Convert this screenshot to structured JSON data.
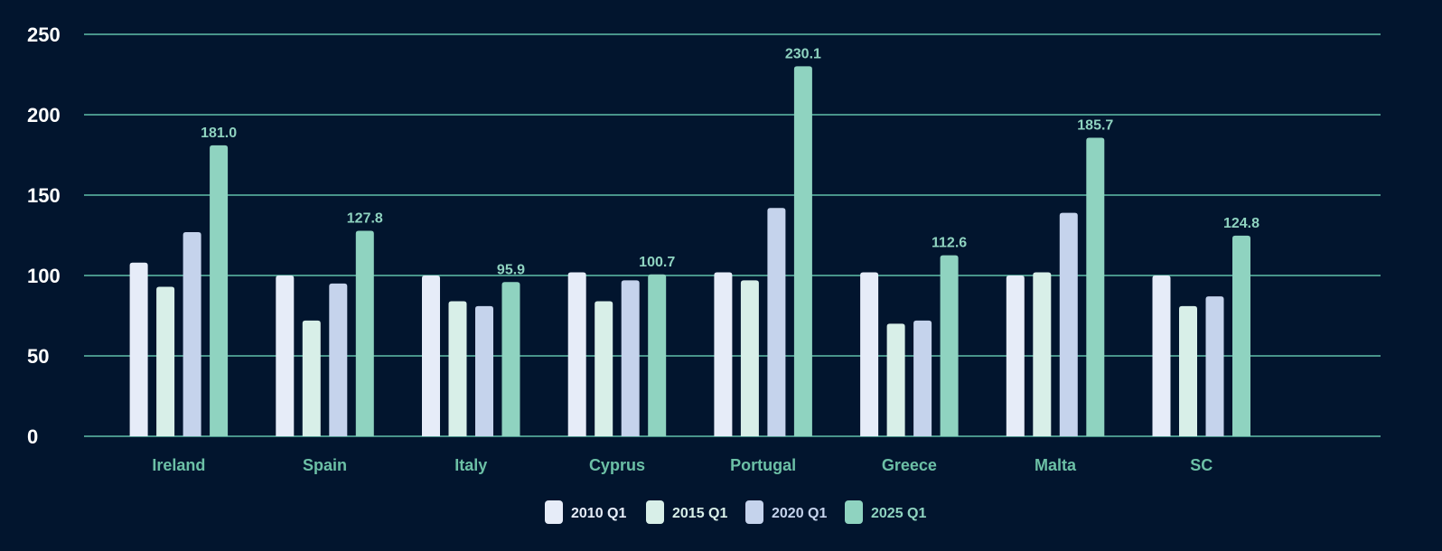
{
  "chart_data": {
    "type": "bar",
    "title": "",
    "xlabel": "",
    "ylabel": "",
    "ylim": [
      0,
      250
    ],
    "yticks": [
      0,
      50,
      100,
      150,
      200,
      250
    ],
    "grid": true,
    "legend_position": "bottom",
    "categories": [
      "Ireland",
      "Spain",
      "Italy",
      "Cyprus",
      "Portugal",
      "Greece",
      "Malta",
      "SC"
    ],
    "series": [
      {
        "name": "2010 Q1",
        "color": "#e6ecf8",
        "values": [
          108,
          100,
          100,
          102,
          102,
          102,
          100,
          100
        ]
      },
      {
        "name": "2015 Q1",
        "color": "#d8efe8",
        "values": [
          93,
          72,
          84,
          84,
          97,
          70,
          102,
          81
        ]
      },
      {
        "name": "2020 Q1",
        "color": "#c5d3ec",
        "values": [
          127,
          95,
          81,
          97,
          142,
          72,
          139,
          87
        ]
      },
      {
        "name": "2025 Q1",
        "color": "#8fd3c0",
        "values": [
          181.0,
          127.8,
          95.9,
          100.7,
          230.1,
          112.6,
          185.7,
          124.8
        ],
        "data_labels": [
          "181.0",
          "127.8",
          "95.9",
          "100.7",
          "230.1",
          "112.6",
          "185.7",
          "124.8"
        ]
      }
    ],
    "colors": {
      "background": "#02152e",
      "grid": "#5fbfa8",
      "category_label": "#6cc0a6"
    }
  }
}
